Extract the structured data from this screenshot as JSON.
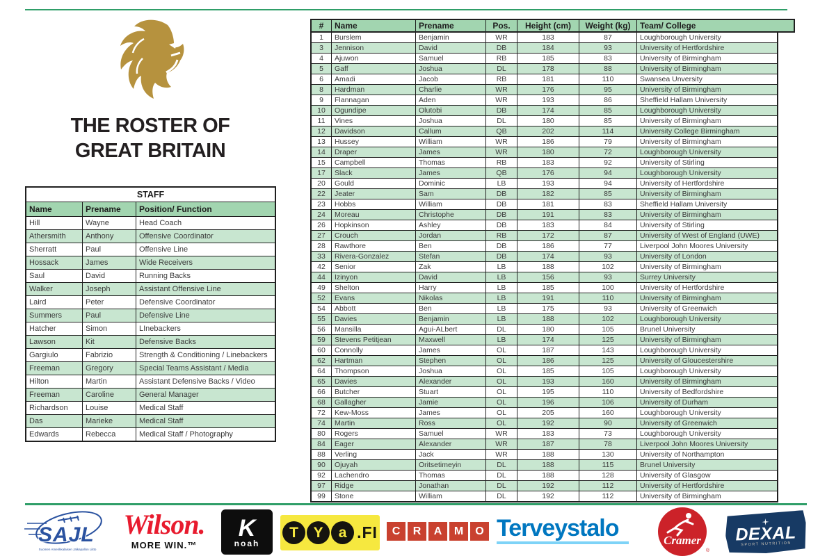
{
  "page": {
    "title_line1": "THE ROSTER OF",
    "title_line2": "GREAT BRITAIN"
  },
  "colors": {
    "accent_line_green": "#2f9e68",
    "table_header_green": "#a2d5b0",
    "table_row_green": "#c8e6d0",
    "lion_gold": "#b6923e",
    "sajl_blue": "#2a52a0",
    "wilson_red": "#e81b2e",
    "cramo_red": "#c9412f",
    "terveystalo_blue": "#0077c0",
    "cramer_red": "#cc2229",
    "dexal_navy": "#173a64",
    "tya_yellow": "#f6e83f"
  },
  "staff": {
    "title": "STAFF",
    "columns": [
      "Name",
      "Prename",
      "Position/ Function"
    ],
    "rows": [
      [
        "Hill",
        "Wayne",
        "Head Coach"
      ],
      [
        "Athersmith",
        "Anthony",
        "Offensive Coordinator"
      ],
      [
        "Sherratt",
        "Paul",
        "Offensive Line"
      ],
      [
        "Hossack",
        "James",
        "Wide Receivers"
      ],
      [
        "Saul",
        "David",
        "Running Backs"
      ],
      [
        "Walker",
        "Joseph",
        "Assistant Offensive Line"
      ],
      [
        "Laird",
        "Peter",
        "Defensive Coordinator"
      ],
      [
        "Summers",
        "Paul",
        "Defensive Line"
      ],
      [
        "Hatcher",
        "Simon",
        "LInebackers"
      ],
      [
        "Lawson",
        "Kit",
        "Defensive Backs"
      ],
      [
        "Gargiulo",
        "Fabrizio",
        "Strength & Conditioning / Linebackers"
      ],
      [
        "Freeman",
        "Gregory",
        "Special Teams Assistant / Media"
      ],
      [
        "Hilton",
        "Martin",
        "Assistant Defensive Backs / Video"
      ],
      [
        "Freeman",
        "Caroline",
        "General Manager"
      ],
      [
        "Richardson",
        "Louise",
        "Medical Staff"
      ],
      [
        "Das",
        "Marieke",
        "Medical Staff"
      ],
      [
        "Edwards",
        "Rebecca",
        "Medical Staff / Photography"
      ]
    ]
  },
  "roster": {
    "columns": [
      "#",
      "Name",
      "Prename",
      "Pos.",
      "Height (cm)",
      "Weight (kg)",
      "Team/ College"
    ],
    "rows": [
      [
        "1",
        "Burslem",
        "Benjamin",
        "WR",
        "183",
        "87",
        "Loughborough University"
      ],
      [
        "3",
        "Jennison",
        "David",
        "DB",
        "184",
        "93",
        "University of Hertfordshire"
      ],
      [
        "4",
        "Ajuwon",
        "Samuel",
        "RB",
        "185",
        "83",
        "University of Birmingham"
      ],
      [
        "5",
        "Gaff",
        "Joshua",
        "DL",
        "178",
        "88",
        "University of Birmingham"
      ],
      [
        "6",
        "Amadi",
        "Jacob",
        "RB",
        "181",
        "110",
        "Swansea Unversity"
      ],
      [
        "8",
        "Hardman",
        "Charlie",
        "WR",
        "176",
        "95",
        "University of Birmingham"
      ],
      [
        "9",
        "Flannagan",
        "Aden",
        "WR",
        "193",
        "86",
        "Sheffield Hallam University"
      ],
      [
        "10",
        "Ogundipe",
        "Olutobi",
        "DB",
        "174",
        "85",
        "Loughborough University"
      ],
      [
        "11",
        "Vines",
        "Joshua",
        "DL",
        "180",
        "85",
        "University of Birmingham"
      ],
      [
        "12",
        "Davidson",
        "Callum",
        "QB",
        "202",
        "114",
        "University College Birmingham"
      ],
      [
        "13",
        "Hussey",
        "William",
        "WR",
        "186",
        "79",
        "University of Birmingham"
      ],
      [
        "14",
        "Draper",
        "James",
        "WR",
        "180",
        "72",
        "Loughborough University"
      ],
      [
        "15",
        "Campbell",
        "Thomas",
        "RB",
        "183",
        "92",
        "University of Stirling"
      ],
      [
        "17",
        "Slack",
        "James",
        "QB",
        "176",
        "94",
        "Loughborough University"
      ],
      [
        "20",
        "Gould",
        "Dominic",
        "LB",
        "193",
        "94",
        "University of Hertfordshire"
      ],
      [
        "22",
        "Jeater",
        "Sam",
        "DB",
        "182",
        "85",
        "University of Birmingham"
      ],
      [
        "23",
        "Hobbs",
        "William",
        "DB",
        "181",
        "83",
        "Sheffield Hallam University"
      ],
      [
        "24",
        "Moreau",
        "Christophe",
        "DB",
        "191",
        "83",
        "University of Birmingham"
      ],
      [
        "26",
        "Hopkinson",
        "Ashley",
        "DB",
        "183",
        "84",
        "University of Stirling"
      ],
      [
        "27",
        "Crouch",
        "Jordan",
        "RB",
        "172",
        "87",
        "University of West of England (UWE)"
      ],
      [
        "28",
        "Rawthore",
        "Ben",
        "DB",
        "186",
        "77",
        "Liverpool John Moores University"
      ],
      [
        "33",
        "Rivera-Gonzalez",
        "Stefan",
        "DB",
        "174",
        "93",
        "University of London"
      ],
      [
        "42",
        "Senior",
        "Zak",
        "LB",
        "188",
        "102",
        "University of Birmingham"
      ],
      [
        "44",
        "Izinyon",
        "David",
        "LB",
        "156",
        "93",
        "Surrey University"
      ],
      [
        "49",
        "Shelton",
        "Harry",
        "LB",
        "185",
        "100",
        "University of Hertfordshire"
      ],
      [
        "52",
        "Evans",
        "Nikolas",
        "LB",
        "191",
        "110",
        "University of Birmingham"
      ],
      [
        "54",
        "Abbott",
        "Ben",
        "LB",
        "175",
        "93",
        "University of Greenwich"
      ],
      [
        "55",
        "Davies",
        "Benjamin",
        "LB",
        "188",
        "102",
        "Loughborough University"
      ],
      [
        "56",
        "Mansilla",
        "Agui-ALbert",
        "DL",
        "180",
        "105",
        "Brunel University"
      ],
      [
        "59",
        "Stevens Petitjean",
        "Maxwell",
        "LB",
        "174",
        "125",
        "University of Birmingham"
      ],
      [
        "60",
        "Connolly",
        "James",
        "OL",
        "187",
        "143",
        "Loughborough University"
      ],
      [
        "62",
        "Hartman",
        "Stephen",
        "OL",
        "186",
        "125",
        "University of Gloucestershire"
      ],
      [
        "64",
        "Thompson",
        "Joshua",
        "OL",
        "185",
        "105",
        "Loughborough University"
      ],
      [
        "65",
        "Davies",
        "Alexander",
        "OL",
        "193",
        "160",
        "University of Birmingham"
      ],
      [
        "66",
        "Butcher",
        "Stuart",
        "OL",
        "195",
        "110",
        "University of Bedfordshire"
      ],
      [
        "68",
        "Gallagher",
        "Jamie",
        "OL",
        "196",
        "106",
        "University of Durham"
      ],
      [
        "72",
        "Kew-Moss",
        "James",
        "OL",
        "205",
        "160",
        "Loughborough University"
      ],
      [
        "74",
        "Martin",
        "Ross",
        "OL",
        "192",
        "90",
        "University of Greenwich"
      ],
      [
        "80",
        "Rogers",
        "Samuel",
        "WR",
        "183",
        "73",
        "Loughborough University"
      ],
      [
        "84",
        "Eager",
        "Alexander",
        "WR",
        "187",
        "78",
        "Liverpool John Moores University"
      ],
      [
        "88",
        "Verling",
        "Jack",
        "WR",
        "188",
        "130",
        "University of Northampton"
      ],
      [
        "90",
        "Ojuyah",
        "Oritsetimeyin",
        "DL",
        "188",
        "115",
        "Brunel University"
      ],
      [
        "92",
        "Lachendro",
        "Thomas",
        "DL",
        "188",
        "128",
        "University of Glasgow"
      ],
      [
        "97",
        "Ridge",
        "Jonathan",
        "DL",
        "192",
        "112",
        "University of Hertfordshire"
      ],
      [
        "99",
        "Stone",
        "William",
        "DL",
        "192",
        "112",
        "University of Birmingham"
      ]
    ]
  },
  "sponsors": {
    "sajl": {
      "name": "SAJL",
      "subtext": "Suomen Amerikkalaisen Jalkapallon Liitto"
    },
    "wilson": {
      "name": "Wilson.",
      "tagline": "MORE WIN.™"
    },
    "knoah": {
      "letter": "K",
      "sub": "noah"
    },
    "tya": {
      "circles": [
        "T",
        "Y",
        "a"
      ],
      "suffix": ".FI"
    },
    "cramo": {
      "letters": [
        "C",
        "R",
        "A",
        "M",
        "O"
      ]
    },
    "terveystalo": {
      "name": "Terveystalo"
    },
    "cramer": {
      "name": "Cramer",
      "reg": "®"
    },
    "dexal": {
      "name": "DEXAL",
      "sub": "SPORT NUTRITION"
    }
  }
}
